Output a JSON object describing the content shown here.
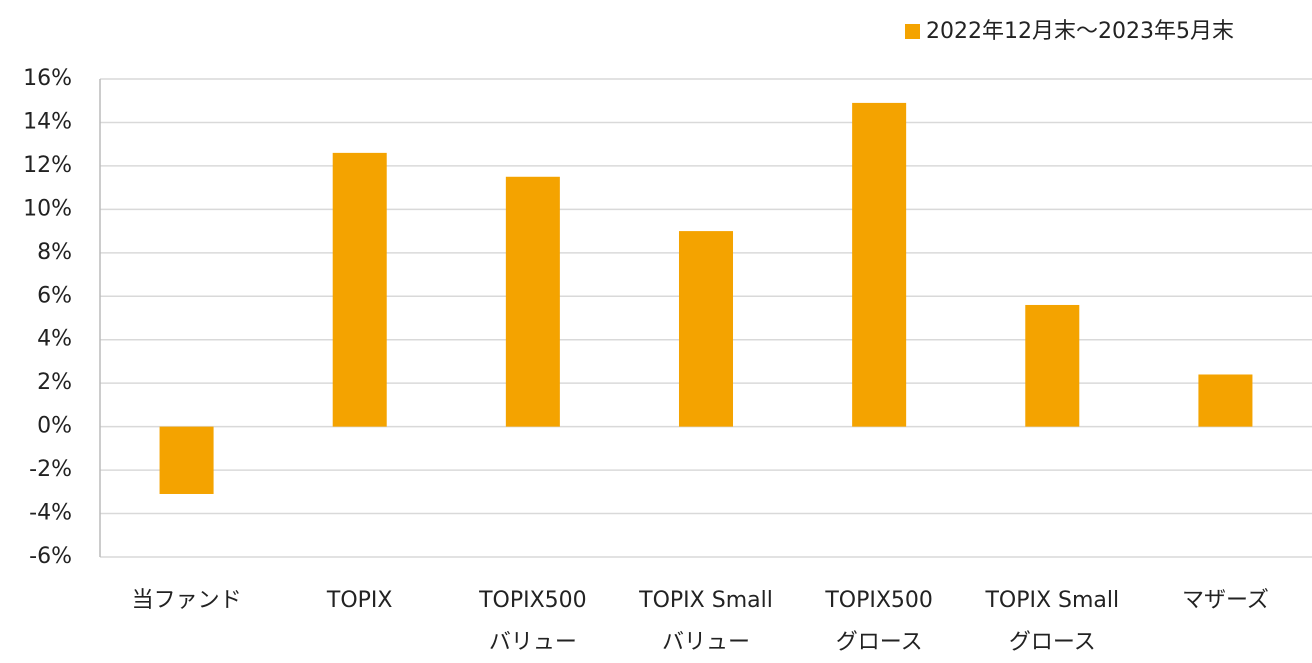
{
  "chart_data": {
    "type": "bar",
    "legend": "2022年12月末～2023年5月末",
    "legend_position": "top-right",
    "categories": [
      "当ファンド",
      "TOPIX",
      "TOPIX500\nバリュー",
      "TOPIX Small\nバリュー",
      "TOPIX500\nグロース",
      "TOPIX Small\nグロース",
      "マザーズ"
    ],
    "values": [
      -3.1,
      12.6,
      11.5,
      9.0,
      14.9,
      5.6,
      2.4
    ],
    "color": "#f4a300",
    "ylim": [
      -6,
      16
    ],
    "yticks": [
      {
        "value": -6,
        "label": "-6%"
      },
      {
        "value": -4,
        "label": "-4%"
      },
      {
        "value": -2,
        "label": "-2%"
      },
      {
        "value": 0,
        "label": "0%"
      },
      {
        "value": 2,
        "label": "2%"
      },
      {
        "value": 4,
        "label": "4%"
      },
      {
        "value": 6,
        "label": "6%"
      },
      {
        "value": 8,
        "label": "8%"
      },
      {
        "value": 10,
        "label": "10%"
      },
      {
        "value": 12,
        "label": "12%"
      },
      {
        "value": 14,
        "label": "14%"
      },
      {
        "value": 16,
        "label": "16%"
      }
    ],
    "grid": true
  }
}
